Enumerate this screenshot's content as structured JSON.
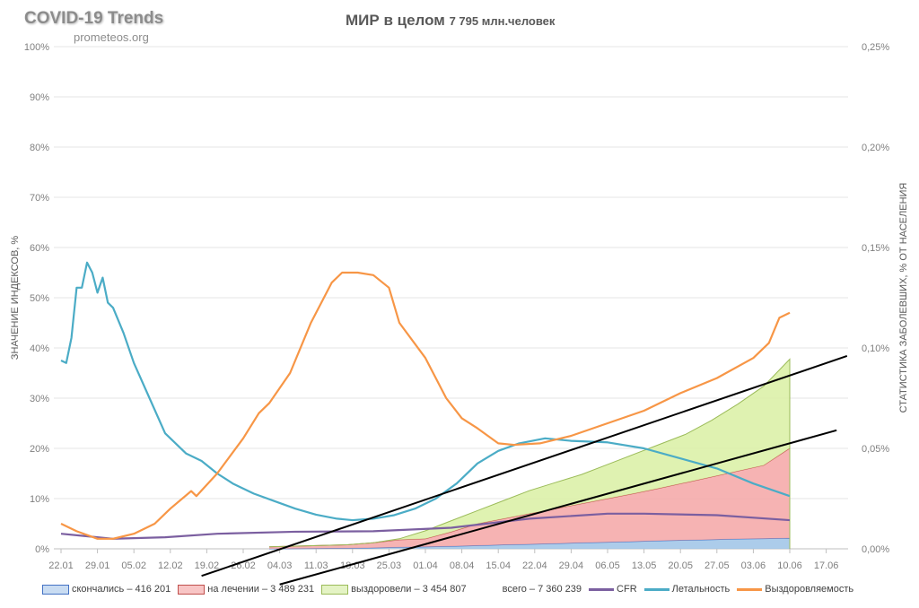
{
  "header": {
    "brand": "COVID-19 Trends",
    "site": "prometeos.org",
    "title": "МИР в целом",
    "population": "7 795 млн.человек"
  },
  "chart_data": {
    "type": "line",
    "xlabel": "",
    "ylabel": "ЗНАЧЕНИЕ ИНДЕКСОВ, %",
    "y2label": "СТАТИСТИКА ЗАБОЛЕВШИХ, % ОТ НАСЕЛЕНИЯ",
    "ylim": [
      0,
      100
    ],
    "y2lim": [
      0,
      0.25
    ],
    "yticks": [
      "0%",
      "10%",
      "20%",
      "30%",
      "40%",
      "50%",
      "60%",
      "70%",
      "80%",
      "90%",
      "100%"
    ],
    "y2ticks": [
      "0,00%",
      "0,05%",
      "0,10%",
      "0,15%",
      "0,20%",
      "0,25%"
    ],
    "xticks": [
      "22.01",
      "29.01",
      "05.02",
      "12.02",
      "19.02",
      "26.02",
      "04.03",
      "11.03",
      "18.03",
      "25.03",
      "01.04",
      "08.04",
      "15.04",
      "22.04",
      "29.04",
      "06.05",
      "13.05",
      "20.05",
      "27.05",
      "03.06",
      "10.06",
      "17.06"
    ],
    "x_unit": "days since 22.01",
    "lines": [
      {
        "name": "CFR",
        "color": "#7b5fa0",
        "points": [
          [
            0,
            3
          ],
          [
            5,
            2.5
          ],
          [
            10,
            2
          ],
          [
            20,
            2.3
          ],
          [
            30,
            3
          ],
          [
            45,
            3.4
          ],
          [
            60,
            3.5
          ],
          [
            75,
            4.2
          ],
          [
            90,
            6
          ],
          [
            105,
            7
          ],
          [
            112,
            7
          ],
          [
            126,
            6.7
          ],
          [
            140,
            5.7
          ]
        ]
      },
      {
        "name": "Летальность",
        "color": "#4bacc6",
        "points": [
          [
            0,
            37.5
          ],
          [
            1,
            37
          ],
          [
            2,
            42
          ],
          [
            3,
            52
          ],
          [
            4,
            52
          ],
          [
            5,
            57
          ],
          [
            6,
            55
          ],
          [
            7,
            51
          ],
          [
            8,
            54
          ],
          [
            9,
            49
          ],
          [
            10,
            48
          ],
          [
            12,
            43
          ],
          [
            14,
            37
          ],
          [
            17,
            30
          ],
          [
            20,
            23
          ],
          [
            24,
            19
          ],
          [
            27,
            17.5
          ],
          [
            30,
            15
          ],
          [
            33,
            13
          ],
          [
            37,
            11
          ],
          [
            41,
            9.5
          ],
          [
            45,
            8
          ],
          [
            49,
            6.8
          ],
          [
            53,
            6
          ],
          [
            56,
            5.7
          ],
          [
            60,
            6
          ],
          [
            64,
            6.7
          ],
          [
            68,
            8
          ],
          [
            72,
            10
          ],
          [
            76,
            13
          ],
          [
            80,
            17
          ],
          [
            84,
            19.5
          ],
          [
            88,
            21
          ],
          [
            93,
            22
          ],
          [
            98,
            21.5
          ],
          [
            105,
            21.2
          ],
          [
            112,
            20
          ],
          [
            119,
            18
          ],
          [
            126,
            16
          ],
          [
            133,
            13
          ],
          [
            140,
            10.5
          ]
        ]
      },
      {
        "name": "Выздоровляемость",
        "color": "#f79646",
        "points": [
          [
            0,
            5
          ],
          [
            3,
            3.5
          ],
          [
            7,
            2
          ],
          [
            10,
            2
          ],
          [
            14,
            3
          ],
          [
            18,
            5
          ],
          [
            21,
            8
          ],
          [
            25,
            11.5
          ],
          [
            26,
            10.5
          ],
          [
            30,
            15
          ],
          [
            35,
            22
          ],
          [
            38,
            27
          ],
          [
            40,
            29
          ],
          [
            44,
            35
          ],
          [
            48,
            45
          ],
          [
            52,
            53
          ],
          [
            54,
            55
          ],
          [
            57,
            55
          ],
          [
            60,
            54.5
          ],
          [
            63,
            52
          ],
          [
            65,
            45
          ],
          [
            70,
            38
          ],
          [
            74,
            30
          ],
          [
            77,
            26
          ],
          [
            80,
            24
          ],
          [
            84,
            21
          ],
          [
            87,
            20.7
          ],
          [
            92,
            21
          ],
          [
            98,
            22.5
          ],
          [
            105,
            25
          ],
          [
            112,
            27.5
          ],
          [
            119,
            31
          ],
          [
            126,
            34
          ],
          [
            133,
            38
          ],
          [
            136,
            41
          ],
          [
            138,
            46
          ],
          [
            140,
            47
          ]
        ]
      }
    ],
    "areas_days": [
      40,
      55,
      60,
      65,
      70,
      75,
      80,
      85,
      90,
      95,
      100,
      105,
      110,
      115,
      120,
      125,
      130,
      135,
      140
    ],
    "areas": [
      {
        "name": "скончались",
        "value": "416 201",
        "color": "#9dc3e6",
        "border": "#4472c4",
        "values": [
          0,
          0.0003,
          0.0005,
          0.0008,
          0.001,
          0.0013,
          0.0016,
          0.002,
          0.0023,
          0.0026,
          0.003,
          0.0033,
          0.0036,
          0.004,
          0.0043,
          0.0046,
          0.0049,
          0.0051,
          0.0053
        ]
      },
      {
        "name": "на лечении",
        "value": "3 489 231",
        "color": "#f4a6a6",
        "border": "#c0504d",
        "values": [
          0.001,
          0.0017,
          0.0025,
          0.0037,
          0.004,
          0.0072,
          0.0109,
          0.013,
          0.0152,
          0.0174,
          0.0195,
          0.0217,
          0.0239,
          0.0262,
          0.0287,
          0.0312,
          0.0338,
          0.0365,
          0.0448
        ]
      },
      {
        "name": "выздоровели",
        "value": "3 454 807",
        "color": "#d9f0a3",
        "border": "#9bbb59",
        "values": [
          0,
          0,
          0.0,
          0.0005,
          0.004,
          0.0055,
          0.0065,
          0.009,
          0.0115,
          0.013,
          0.0145,
          0.017,
          0.0195,
          0.0218,
          0.024,
          0.0282,
          0.0333,
          0.0394,
          0.0443
        ]
      }
    ],
    "total": "всего – 7 360 239",
    "trendlines": [
      [
        [
          27,
          -5.4
        ],
        [
          151,
          38.4
        ]
      ],
      [
        [
          42,
          -7.1
        ],
        [
          149,
          23.6
        ]
      ]
    ]
  }
}
